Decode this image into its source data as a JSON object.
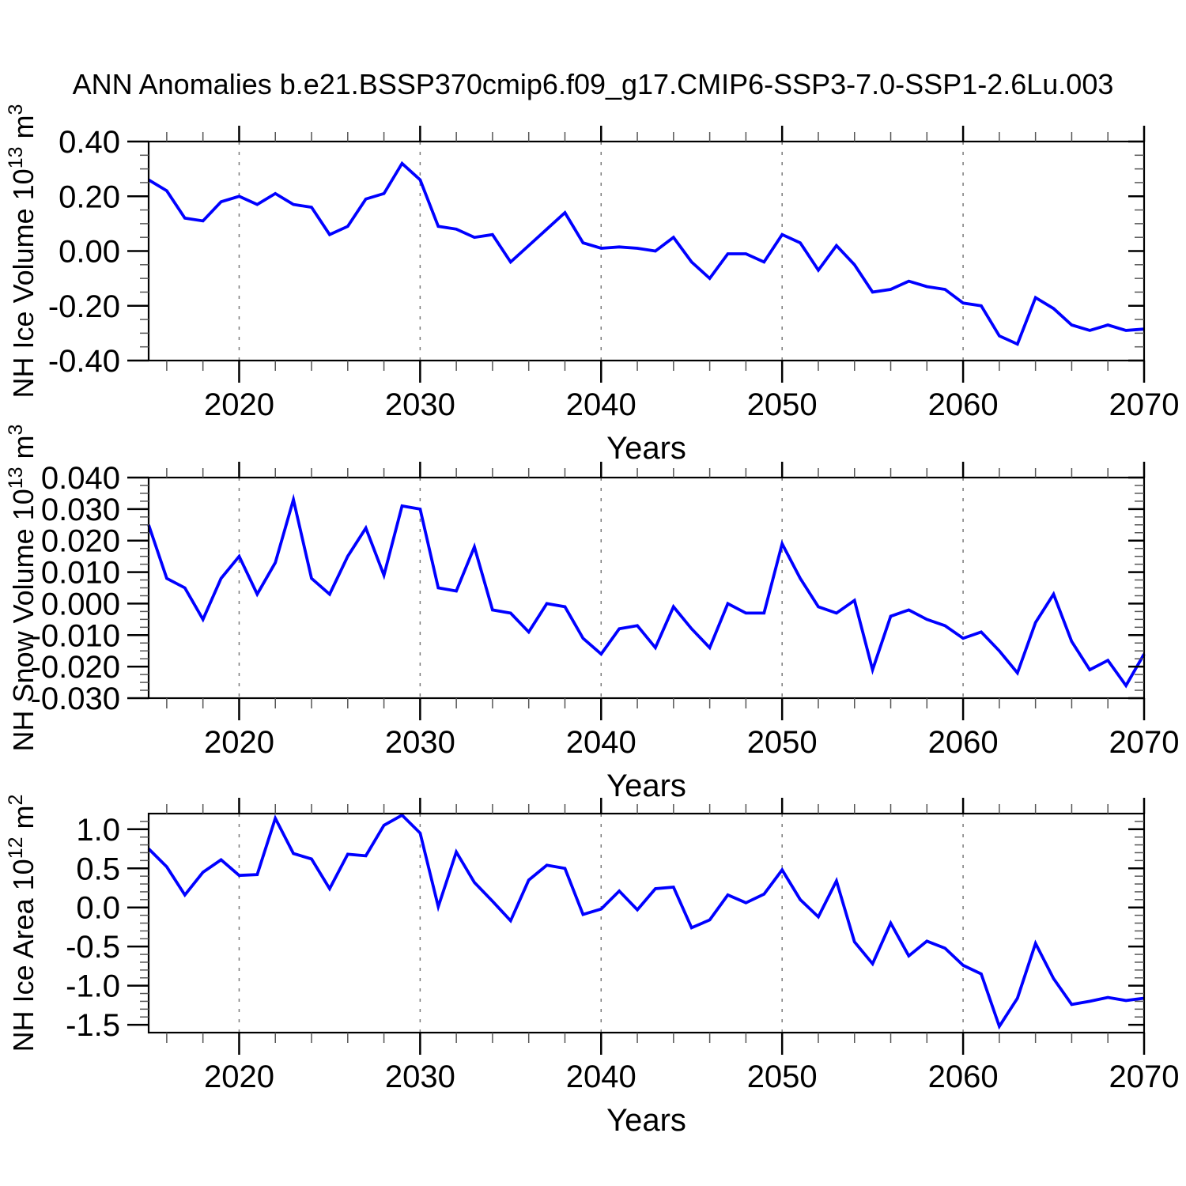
{
  "title": "ANN Anomalies b.e21.BSSP370cmip6.f09_g17.CMIP6-SSP3-7.0-SSP1-2.6Lu.003",
  "colors": {
    "line": "#0000ff",
    "grid": "#7a7a7a",
    "frame": "#000000",
    "minor_tick": "#555555"
  },
  "x_axis": {
    "label": "Years",
    "range": [
      2015,
      2070
    ],
    "step": 1,
    "major_ticks": [
      2020,
      2030,
      2040,
      2050,
      2060,
      2070
    ],
    "minor_step": 2,
    "grid_years": [
      2020,
      2030,
      2040,
      2050,
      2060
    ]
  },
  "chart_data": [
    {
      "type": "line",
      "series_name": "NH Ice Volume 10^13 m^3",
      "ylabel_segments": [
        {
          "t": "NH Ice Volume 10"
        },
        {
          "t": "13",
          "sup": true
        },
        {
          "t": " m"
        },
        {
          "t": "3",
          "sup": true
        }
      ],
      "ylim": [
        -0.4,
        0.4
      ],
      "y_minor_step": 0.05,
      "yticks": [
        {
          "v": 0.4,
          "label": "0.40"
        },
        {
          "v": 0.2,
          "label": "0.20"
        },
        {
          "v": 0.0,
          "label": "0.00"
        },
        {
          "v": -0.2,
          "label": "-0.20"
        },
        {
          "v": -0.4,
          "label": "-0.40"
        }
      ],
      "values": [
        0.26,
        0.22,
        0.12,
        0.11,
        0.18,
        0.2,
        0.17,
        0.21,
        0.17,
        0.16,
        0.06,
        0.09,
        0.19,
        0.21,
        0.32,
        0.26,
        0.09,
        0.08,
        0.05,
        0.06,
        -0.04,
        0.02,
        0.08,
        0.14,
        0.03,
        0.01,
        0.015,
        0.01,
        0.0,
        0.05,
        -0.04,
        -0.1,
        -0.01,
        -0.01,
        -0.04,
        0.06,
        0.03,
        -0.07,
        0.02,
        -0.05,
        -0.15,
        -0.14,
        -0.11,
        -0.13,
        -0.14,
        -0.19,
        -0.2,
        -0.31,
        -0.34,
        -0.17,
        -0.21,
        -0.27,
        -0.29,
        -0.27,
        -0.29,
        -0.285
      ]
    },
    {
      "type": "line",
      "series_name": "NH Snow Volume 10^13 m^3",
      "ylabel_segments": [
        {
          "t": "NH Snow Volume 10"
        },
        {
          "t": "13",
          "sup": true
        },
        {
          "t": " m"
        },
        {
          "t": "3",
          "sup": true
        }
      ],
      "ylim": [
        -0.03,
        0.04
      ],
      "y_minor_step": 0.0025,
      "yticks": [
        {
          "v": 0.04,
          "label": "0.040"
        },
        {
          "v": 0.03,
          "label": "0.030"
        },
        {
          "v": 0.02,
          "label": "0.020"
        },
        {
          "v": 0.01,
          "label": "0.010"
        },
        {
          "v": 0.0,
          "label": "0.000"
        },
        {
          "v": -0.01,
          "label": "-0.010"
        },
        {
          "v": -0.02,
          "label": "-0.020"
        },
        {
          "v": -0.03,
          "label": "-0.030"
        }
      ],
      "values": [
        0.025,
        0.008,
        0.005,
        -0.005,
        0.008,
        0.015,
        0.003,
        0.013,
        0.033,
        0.008,
        0.003,
        0.015,
        0.024,
        0.009,
        0.031,
        0.03,
        0.005,
        0.004,
        0.018,
        -0.002,
        -0.003,
        -0.009,
        0.0,
        -0.001,
        -0.011,
        -0.016,
        -0.008,
        -0.007,
        -0.014,
        -0.001,
        -0.008,
        -0.014,
        0.0,
        -0.003,
        -0.003,
        0.019,
        0.008,
        -0.001,
        -0.003,
        0.001,
        -0.021,
        -0.004,
        -0.002,
        -0.005,
        -0.007,
        -0.011,
        -0.009,
        -0.015,
        -0.022,
        -0.006,
        0.003,
        -0.012,
        -0.021,
        -0.018,
        -0.026,
        -0.016
      ]
    },
    {
      "type": "line",
      "series_name": "NH Ice Area 10^12 m^2",
      "ylabel_segments": [
        {
          "t": "NH Ice Area 10"
        },
        {
          "t": "12",
          "sup": true
        },
        {
          "t": " m"
        },
        {
          "t": "2",
          "sup": true
        }
      ],
      "ylim": [
        -1.6,
        1.2
      ],
      "y_minor_step": 0.1,
      "yticks": [
        {
          "v": 1.0,
          "label": "1.0"
        },
        {
          "v": 0.5,
          "label": "0.5"
        },
        {
          "v": 0.0,
          "label": "0.0"
        },
        {
          "v": -0.5,
          "label": "-0.5"
        },
        {
          "v": -1.0,
          "label": "-1.0"
        },
        {
          "v": -1.5,
          "label": "-1.5"
        }
      ],
      "values": [
        0.75,
        0.52,
        0.16,
        0.45,
        0.61,
        0.41,
        0.42,
        1.14,
        0.69,
        0.62,
        0.24,
        0.68,
        0.66,
        1.05,
        1.18,
        0.95,
        0.01,
        0.71,
        0.32,
        0.08,
        -0.17,
        0.35,
        0.54,
        0.5,
        -0.09,
        -0.02,
        0.21,
        -0.03,
        0.24,
        0.26,
        -0.26,
        -0.16,
        0.16,
        0.06,
        0.17,
        0.48,
        0.1,
        -0.12,
        0.34,
        -0.44,
        -0.72,
        -0.2,
        -0.62,
        -0.43,
        -0.52,
        -0.74,
        -0.85,
        -1.52,
        -1.16,
        -0.46,
        -0.91,
        -1.24,
        -1.2,
        -1.15,
        -1.19,
        -1.16
      ]
    }
  ]
}
